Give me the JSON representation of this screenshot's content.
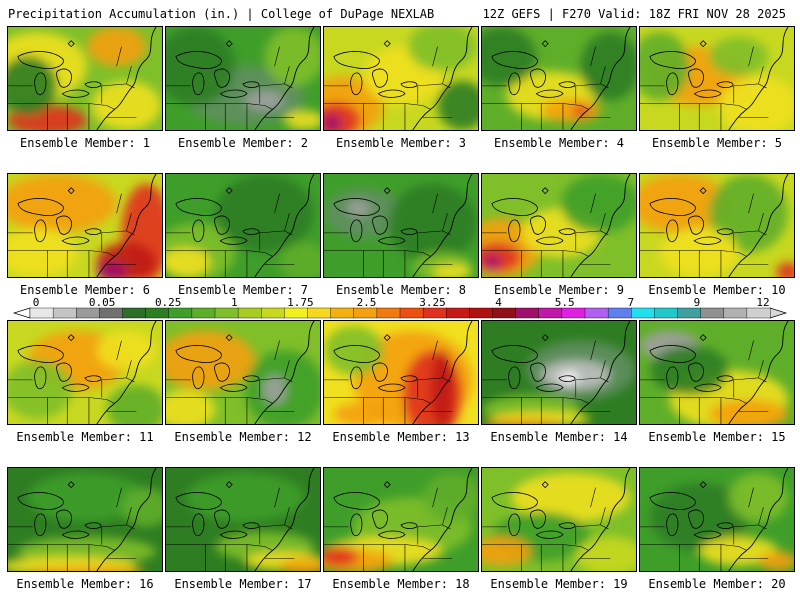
{
  "header": {
    "left": "Precipitation Accumulation (in.) | College of DuPage NEXLAB",
    "right": "12Z GEFS | F270 Valid: 18Z FRI NOV 28 2025"
  },
  "panel_label_prefix": "Ensemble Member: ",
  "members": [
    {
      "label": "Ensemble Member: 1",
      "base": "#7fbf2a",
      "blobs": [
        [
          "#f0e020",
          30,
          40,
          50,
          35
        ],
        [
          "#f4a010",
          110,
          20,
          30,
          20
        ],
        [
          "#e03020",
          40,
          95,
          40,
          15
        ],
        [
          "#2e7d22",
          20,
          60,
          30,
          30
        ],
        [
          "#f0e020",
          120,
          80,
          35,
          25
        ]
      ]
    },
    {
      "label": "Ensemble Member: 2",
      "base": "#3f9e2a",
      "blobs": [
        [
          "#5f8f5f",
          80,
          70,
          60,
          30
        ],
        [
          "#2e7d22",
          30,
          40,
          40,
          40
        ],
        [
          "#7fbf2a",
          130,
          30,
          30,
          30
        ],
        [
          "#a0a0a0",
          100,
          75,
          20,
          10
        ],
        [
          "#f0e020",
          140,
          95,
          20,
          10
        ]
      ]
    },
    {
      "label": "Ensemble Member: 3",
      "base": "#c8d820",
      "blobs": [
        [
          "#f4a010",
          20,
          80,
          40,
          30
        ],
        [
          "#e03020",
          12,
          95,
          25,
          18
        ],
        [
          "#a0106a",
          8,
          98,
          10,
          10
        ],
        [
          "#f0e020",
          80,
          50,
          40,
          30
        ],
        [
          "#7fbf2a",
          120,
          20,
          35,
          25
        ],
        [
          "#2e7d22",
          140,
          80,
          25,
          25
        ]
      ]
    },
    {
      "label": "Ensemble Member: 4",
      "base": "#5fae2a",
      "blobs": [
        [
          "#f0e020",
          70,
          70,
          45,
          25
        ],
        [
          "#f4a010",
          90,
          85,
          30,
          12
        ],
        [
          "#2e7d22",
          20,
          30,
          35,
          30
        ],
        [
          "#2e7d22",
          130,
          40,
          30,
          35
        ],
        [
          "#e03020",
          100,
          85,
          8,
          6
        ]
      ]
    },
    {
      "label": "Ensemble Member: 5",
      "base": "#c8d820",
      "blobs": [
        [
          "#f4a010",
          60,
          50,
          50,
          30
        ],
        [
          "#f0e020",
          120,
          80,
          40,
          30
        ],
        [
          "#5fae2a",
          20,
          40,
          30,
          35
        ],
        [
          "#7fbf2a",
          100,
          30,
          30,
          20
        ]
      ]
    },
    {
      "label": "Ensemble Member: 6",
      "base": "#c8d820",
      "blobs": [
        [
          "#f4a010",
          50,
          30,
          60,
          30
        ],
        [
          "#e03020",
          140,
          60,
          25,
          50
        ],
        [
          "#c01818",
          120,
          90,
          30,
          20
        ],
        [
          "#a0106a",
          105,
          100,
          15,
          10
        ],
        [
          "#f0e020",
          30,
          80,
          40,
          25
        ]
      ]
    },
    {
      "label": "Ensemble Member: 7",
      "base": "#3f9e2a",
      "blobs": [
        [
          "#7fbf2a",
          30,
          80,
          40,
          30
        ],
        [
          "#f0e020",
          20,
          90,
          25,
          15
        ],
        [
          "#2e7d22",
          100,
          40,
          50,
          40
        ],
        [
          "#5fae2a",
          140,
          90,
          25,
          20
        ]
      ]
    },
    {
      "label": "Ensemble Member: 8",
      "base": "#3f9e2a",
      "blobs": [
        [
          "#5f8f5f",
          40,
          40,
          40,
          25
        ],
        [
          "#a0a0a0",
          35,
          35,
          12,
          8
        ],
        [
          "#2e7d22",
          110,
          50,
          45,
          40
        ],
        [
          "#7fbf2a",
          120,
          95,
          30,
          15
        ],
        [
          "#f0e020",
          130,
          100,
          20,
          8
        ]
      ]
    },
    {
      "label": "Ensemble Member: 9",
      "base": "#7fbf2a",
      "blobs": [
        [
          "#f4a010",
          20,
          75,
          40,
          30
        ],
        [
          "#e03020",
          15,
          85,
          25,
          15
        ],
        [
          "#a0106a",
          10,
          90,
          10,
          8
        ],
        [
          "#f0e020",
          80,
          60,
          40,
          25
        ],
        [
          "#3f9e2a",
          120,
          30,
          40,
          30
        ]
      ]
    },
    {
      "label": "Ensemble Member: 10",
      "base": "#c8d820",
      "blobs": [
        [
          "#f4a010",
          40,
          30,
          50,
          30
        ],
        [
          "#5fae2a",
          110,
          40,
          40,
          40
        ],
        [
          "#f0e020",
          60,
          80,
          40,
          25
        ],
        [
          "#e03020",
          150,
          100,
          12,
          10
        ]
      ]
    },
    {
      "label": "Ensemble Member: 11",
      "base": "#c8d820",
      "blobs": [
        [
          "#f4a010",
          70,
          40,
          50,
          30
        ],
        [
          "#7fbf2a",
          30,
          70,
          35,
          30
        ],
        [
          "#5fae2a",
          130,
          90,
          30,
          25
        ],
        [
          "#f0e020",
          120,
          30,
          30,
          20
        ]
      ]
    },
    {
      "label": "Ensemble Member: 12",
      "base": "#7fbf2a",
      "blobs": [
        [
          "#f4a010",
          40,
          40,
          50,
          30
        ],
        [
          "#f0e020",
          20,
          90,
          30,
          20
        ],
        [
          "#3f9e2a",
          120,
          70,
          40,
          40
        ],
        [
          "#a0a0a0",
          110,
          70,
          12,
          15
        ]
      ]
    },
    {
      "label": "Ensemble Member: 13",
      "base": "#f0e020",
      "blobs": [
        [
          "#f4a010",
          90,
          60,
          60,
          50
        ],
        [
          "#e03020",
          110,
          75,
          30,
          45
        ],
        [
          "#c01818",
          120,
          70,
          12,
          40
        ],
        [
          "#7fbf2a",
          30,
          30,
          30,
          25
        ],
        [
          "#f4a010",
          40,
          95,
          30,
          12
        ]
      ]
    },
    {
      "label": "Ensemble Member: 14",
      "base": "#2e7d22",
      "blobs": [
        [
          "#5f8f5f",
          100,
          50,
          55,
          30
        ],
        [
          "#c0c0c0",
          95,
          55,
          35,
          15
        ],
        [
          "#ffffff",
          88,
          58,
          10,
          6
        ],
        [
          "#7fbf2a",
          50,
          90,
          50,
          15
        ],
        [
          "#f0e020",
          60,
          100,
          50,
          8
        ],
        [
          "#f4a010",
          40,
          104,
          40,
          5
        ]
      ]
    },
    {
      "label": "Ensemble Member: 15",
      "base": "#5fae2a",
      "blobs": [
        [
          "#a0a0a0",
          30,
          25,
          30,
          15
        ],
        [
          "#f0e020",
          90,
          80,
          60,
          30
        ],
        [
          "#f4a010",
          110,
          95,
          40,
          15
        ],
        [
          "#2e7d22",
          50,
          50,
          40,
          25
        ]
      ]
    },
    {
      "label": "Ensemble Member: 16",
      "base": "#2e7d22",
      "blobs": [
        [
          "#3f9e2a",
          80,
          30,
          60,
          25
        ],
        [
          "#7fbf2a",
          80,
          85,
          70,
          15
        ],
        [
          "#f0e020",
          60,
          100,
          70,
          10
        ],
        [
          "#f4a010",
          80,
          106,
          60,
          6
        ],
        [
          "#5fae2a",
          140,
          40,
          25,
          20
        ]
      ]
    },
    {
      "label": "Ensemble Member: 17",
      "base": "#2e7d22",
      "blobs": [
        [
          "#3f9e2a",
          80,
          30,
          60,
          25
        ],
        [
          "#7fbf2a",
          100,
          80,
          50,
          15
        ],
        [
          "#f0e020",
          120,
          95,
          40,
          10
        ],
        [
          "#f4a010",
          140,
          100,
          25,
          8
        ]
      ]
    },
    {
      "label": "Ensemble Member: 18",
      "base": "#3f9e2a",
      "blobs": [
        [
          "#7fbf2a",
          90,
          60,
          60,
          30
        ],
        [
          "#f0e020",
          60,
          85,
          60,
          15
        ],
        [
          "#f4a010",
          30,
          95,
          40,
          12
        ],
        [
          "#e03020",
          15,
          90,
          20,
          10
        ],
        [
          "#5fae2a",
          130,
          30,
          30,
          25
        ]
      ]
    },
    {
      "label": "Ensemble Member: 19",
      "base": "#7fbf2a",
      "blobs": [
        [
          "#f0e020",
          90,
          30,
          60,
          25
        ],
        [
          "#3f9e2a",
          60,
          70,
          50,
          25
        ],
        [
          "#f4a010",
          20,
          85,
          30,
          15
        ],
        [
          "#c8d820",
          130,
          90,
          35,
          20
        ]
      ]
    },
    {
      "label": "Ensemble Member: 20",
      "base": "#3f9e2a",
      "blobs": [
        [
          "#2e7d22",
          60,
          50,
          50,
          35
        ],
        [
          "#7fbf2a",
          120,
          30,
          30,
          25
        ],
        [
          "#f0e020",
          100,
          85,
          40,
          15
        ],
        [
          "#f4a010",
          140,
          95,
          20,
          10
        ]
      ]
    }
  ],
  "colorbar": {
    "labels": [
      "0",
      "0.05",
      "0.25",
      "1",
      "1.75",
      "2.5",
      "3.25",
      "4",
      "5.5",
      "7",
      "9",
      "12"
    ],
    "colors": [
      "#e8e8e8",
      "#c4c4c4",
      "#9a9a9a",
      "#707070",
      "#2d6e2a",
      "#2e7d22",
      "#3f9e2a",
      "#5fae2a",
      "#7fbf2a",
      "#a8cc20",
      "#c8d820",
      "#f0f020",
      "#f6d820",
      "#f4b010",
      "#f4a010",
      "#f07a10",
      "#ec5010",
      "#e03020",
      "#c81818",
      "#b01010",
      "#901018",
      "#a0106a",
      "#c018a8",
      "#e020e0",
      "#b060f0",
      "#6080f0",
      "#20e0f0",
      "#20c8c8",
      "#40a0a0",
      "#909090",
      "#b0b0b0",
      "#d0d0d0"
    ]
  }
}
